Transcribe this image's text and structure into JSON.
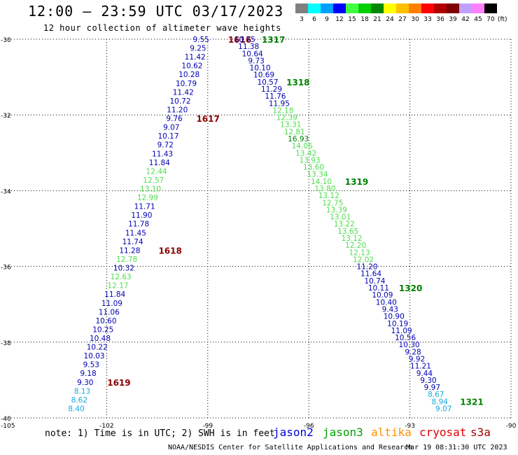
{
  "header": {
    "title": "12:00 – 23:59 UTC 03/17/2023",
    "subtitle": "12 hour collection of altimeter wave heights"
  },
  "color_scale": {
    "labels": [
      "3",
      "6",
      "9",
      "12",
      "15",
      "18",
      "21",
      "24",
      "27",
      "30",
      "33",
      "36",
      "39",
      "42",
      "45",
      "70"
    ],
    "unit": "(ft)",
    "colors": [
      "#808080",
      "#00ffff",
      "#00a0ff",
      "#0000ff",
      "#40ff40",
      "#00d000",
      "#008800",
      "#ffff00",
      "#ffc000",
      "#ff8000",
      "#ff0000",
      "#b00000",
      "#800000",
      "#c0a0ff",
      "#ff80ff",
      "#000000"
    ]
  },
  "footer": {
    "note": "note: 1) Time is in UTC; 2) SWH is in feet",
    "satellites": [
      {
        "name": "jason2",
        "color": "#0000e0"
      },
      {
        "name": "jason3",
        "color": "#00a000"
      },
      {
        "name": "altika",
        "color": "#ff9000"
      },
      {
        "name": "cryosat",
        "color": "#e00000"
      },
      {
        "name": "s3a",
        "color": "#a00000"
      }
    ],
    "credit": "NOAA/NESDIS Center for Satellite Applications and Research",
    "generated": "Mar 19 08:31:30 UTC 2023"
  },
  "chart_data": {
    "type": "scatter",
    "title": "12:00 – 23:59 UTC 03/17/2023",
    "subtitle": "12 hour collection of altimeter wave heights",
    "xlim": [
      -105,
      -90
    ],
    "ylim": [
      -40,
      -30
    ],
    "x_ticks": [
      -102,
      -99,
      -96,
      -93,
      -90
    ],
    "x_tick_labels": [
      "-102",
      "-99",
      "-96",
      "-93",
      "-90"
    ],
    "y_ticks": [
      -30,
      -32,
      -34,
      -36,
      -38,
      -40
    ],
    "y_tick_labels": [
      "-30",
      "-32",
      "-34",
      "-36",
      "-38",
      "-40"
    ],
    "x_corner_label": "-105",
    "grid": true,
    "series_colors": {
      "dkblue": "#0000b4",
      "ltgreen": "#50dc50",
      "cyan": "#14aadc",
      "time": "#8b0000",
      "timegreen": "#008000"
    },
    "tracks": [
      {
        "pass": "west",
        "lon_start": -99.2,
        "lat_start": -30.0,
        "lon_end": -102.9,
        "lat_end": -39.75,
        "points": [
          {
            "v": "9.55",
            "c": "dkblue"
          },
          {
            "v": "9.25",
            "c": "dkblue"
          },
          {
            "v": "11.42",
            "c": "dkblue"
          },
          {
            "v": "10.62",
            "c": "dkblue"
          },
          {
            "v": "10.28",
            "c": "dkblue"
          },
          {
            "v": "10.79",
            "c": "dkblue"
          },
          {
            "v": "11.42",
            "c": "dkblue"
          },
          {
            "v": "10.72",
            "c": "dkblue"
          },
          {
            "v": "11.20",
            "c": "dkblue"
          },
          {
            "v": "9.76",
            "c": "dkblue"
          },
          {
            "v": "9.07",
            "c": "dkblue"
          },
          {
            "v": "10.17",
            "c": "dkblue"
          },
          {
            "v": "9.72",
            "c": "dkblue"
          },
          {
            "v": "11.43",
            "c": "dkblue"
          },
          {
            "v": "11.84",
            "c": "dkblue"
          },
          {
            "v": "12.44",
            "c": "ltgreen"
          },
          {
            "v": "12.57",
            "c": "ltgreen"
          },
          {
            "v": "13.10",
            "c": "ltgreen"
          },
          {
            "v": "12.99",
            "c": "ltgreen"
          },
          {
            "v": "11.71",
            "c": "dkblue"
          },
          {
            "v": "11.90",
            "c": "dkblue"
          },
          {
            "v": "11.78",
            "c": "dkblue"
          },
          {
            "v": "11.45",
            "c": "dkblue"
          },
          {
            "v": "11.74",
            "c": "dkblue"
          },
          {
            "v": "11.28",
            "c": "dkblue"
          },
          {
            "v": "12.78",
            "c": "ltgreen"
          },
          {
            "v": "10.32",
            "c": "dkblue"
          },
          {
            "v": "12.63",
            "c": "ltgreen"
          },
          {
            "v": "12.17",
            "c": "ltgreen"
          },
          {
            "v": "11.84",
            "c": "dkblue"
          },
          {
            "v": "11.09",
            "c": "dkblue"
          },
          {
            "v": "11.06",
            "c": "dkblue"
          },
          {
            "v": "10.60",
            "c": "dkblue"
          },
          {
            "v": "10.25",
            "c": "dkblue"
          },
          {
            "v": "10.48",
            "c": "dkblue"
          },
          {
            "v": "10.22",
            "c": "dkblue"
          },
          {
            "v": "10.03",
            "c": "dkblue"
          },
          {
            "v": "9.53",
            "c": "dkblue"
          },
          {
            "v": "9.18",
            "c": "dkblue"
          },
          {
            "v": "9.30",
            "c": "dkblue"
          },
          {
            "v": "8.13",
            "c": "cyan"
          },
          {
            "v": "8.62",
            "c": "cyan"
          },
          {
            "v": "8.40",
            "c": "cyan"
          }
        ],
        "time_labels": [
          {
            "v": "1616",
            "at": 0,
            "dx": 1.15,
            "c": "time"
          },
          {
            "v": "1617",
            "at": 9,
            "dx": 1.0,
            "c": "time"
          },
          {
            "v": "1618",
            "at": 24,
            "dx": 1.2,
            "c": "time"
          },
          {
            "v": "1619",
            "at": 39,
            "dx": 1.0,
            "c": "time"
          }
        ]
      },
      {
        "pass": "east",
        "lon_start": -97.9,
        "lat_start": -30.0,
        "lon_end": -92.0,
        "lat_end": -39.75,
        "points": [
          {
            "v": "10.75",
            "c": "dkblue"
          },
          {
            "v": "11.38",
            "c": "dkblue"
          },
          {
            "v": "10.64",
            "c": "dkblue"
          },
          {
            "v": "9.73",
            "c": "dkblue"
          },
          {
            "v": "10.10",
            "c": "dkblue"
          },
          {
            "v": "10.69",
            "c": "dkblue"
          },
          {
            "v": "10.57",
            "c": "dkblue"
          },
          {
            "v": "11.29",
            "c": "dkblue"
          },
          {
            "v": "11.76",
            "c": "dkblue"
          },
          {
            "v": "11.95",
            "c": "dkblue"
          },
          {
            "v": "12.18",
            "c": "ltgreen"
          },
          {
            "v": "12.39",
            "c": "ltgreen"
          },
          {
            "v": "13.31",
            "c": "ltgreen"
          },
          {
            "v": "12.81",
            "c": "ltgreen"
          },
          {
            "v": "16.93",
            "c": "timegreen"
          },
          {
            "v": "14.06",
            "c": "ltgreen"
          },
          {
            "v": "13.42",
            "c": "ltgreen"
          },
          {
            "v": "13.93",
            "c": "ltgreen"
          },
          {
            "v": "13.60",
            "c": "ltgreen"
          },
          {
            "v": "13.34",
            "c": "ltgreen"
          },
          {
            "v": "14.10",
            "c": "ltgreen"
          },
          {
            "v": "13.80",
            "c": "ltgreen"
          },
          {
            "v": "13.12",
            "c": "ltgreen"
          },
          {
            "v": "12.75",
            "c": "ltgreen"
          },
          {
            "v": "13.39",
            "c": "ltgreen"
          },
          {
            "v": "13.01",
            "c": "ltgreen"
          },
          {
            "v": "13.22",
            "c": "ltgreen"
          },
          {
            "v": "13.65",
            "c": "ltgreen"
          },
          {
            "v": "13.12",
            "c": "ltgreen"
          },
          {
            "v": "12.20",
            "c": "ltgreen"
          },
          {
            "v": "12.13",
            "c": "ltgreen"
          },
          {
            "v": "12.02",
            "c": "ltgreen"
          },
          {
            "v": "11.20",
            "c": "dkblue"
          },
          {
            "v": "11.64",
            "c": "dkblue"
          },
          {
            "v": "10.74",
            "c": "dkblue"
          },
          {
            "v": "10.11",
            "c": "dkblue"
          },
          {
            "v": "10.09",
            "c": "dkblue"
          },
          {
            "v": "10.40",
            "c": "dkblue"
          },
          {
            "v": "9.43",
            "c": "dkblue"
          },
          {
            "v": "10.90",
            "c": "dkblue"
          },
          {
            "v": "10.19",
            "c": "dkblue"
          },
          {
            "v": "11.09",
            "c": "dkblue"
          },
          {
            "v": "10.56",
            "c": "dkblue"
          },
          {
            "v": "10.30",
            "c": "dkblue"
          },
          {
            "v": "9.28",
            "c": "dkblue"
          },
          {
            "v": "9.92",
            "c": "dkblue"
          },
          {
            "v": "11.21",
            "c": "dkblue"
          },
          {
            "v": "9.44",
            "c": "dkblue"
          },
          {
            "v": "9.30",
            "c": "dkblue"
          },
          {
            "v": "9.97",
            "c": "dkblue"
          },
          {
            "v": "8.67",
            "c": "cyan"
          },
          {
            "v": "8.94",
            "c": "cyan"
          },
          {
            "v": "9.07",
            "c": "cyan"
          }
        ],
        "time_labels": [
          {
            "v": "1317",
            "at": 0,
            "dx": 0.85,
            "c": "timegreen"
          },
          {
            "v": "1318",
            "at": 6,
            "dx": 0.9,
            "c": "timegreen"
          },
          {
            "v": "1319",
            "at": 20,
            "dx": 1.05,
            "c": "timegreen"
          },
          {
            "v": "1320",
            "at": 35,
            "dx": 0.95,
            "c": "timegreen"
          },
          {
            "v": "1321",
            "at": 51,
            "dx": 0.95,
            "c": "timegreen"
          }
        ]
      }
    ]
  }
}
